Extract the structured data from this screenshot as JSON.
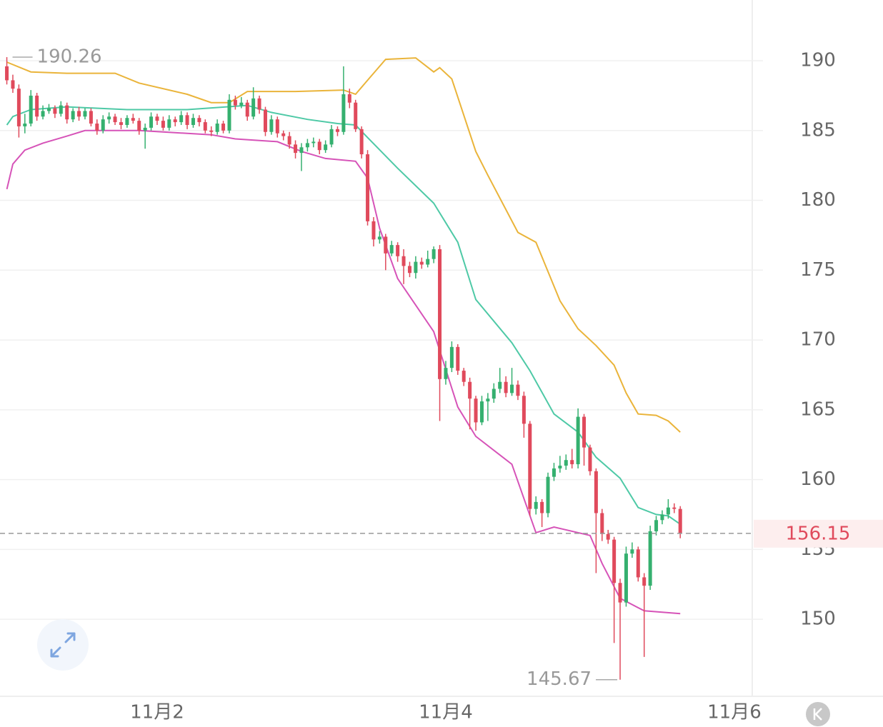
{
  "chart_data": {
    "type": "candlestick",
    "xlim": [
      0.911,
      6.124
    ],
    "xticks": [
      {
        "value": 2,
        "label": "11月2"
      },
      {
        "value": 4,
        "label": "11月4"
      },
      {
        "value": 6,
        "label": "11月6"
      }
    ],
    "ylim": [
      144.48,
      194.35
    ],
    "yticks": [
      150,
      155,
      160,
      165,
      170,
      175,
      180,
      185,
      190
    ],
    "grid": true,
    "up_color": "#35b06f",
    "down_color": "#e04a5c",
    "x": [
      0.9583,
      1,
      1.0417,
      1.0833,
      1.125,
      1.1667,
      1.2083,
      1.25,
      1.2917,
      1.3333,
      1.375,
      1.4167,
      1.4583,
      1.5,
      1.5417,
      1.5833,
      1.625,
      1.6667,
      1.7083,
      1.75,
      1.7917,
      1.8333,
      1.875,
      1.9167,
      1.9583,
      2,
      2.0417,
      2.0833,
      2.125,
      2.1667,
      2.2083,
      2.25,
      2.2917,
      2.3333,
      2.375,
      2.4167,
      2.4583,
      2.5,
      2.5417,
      2.5833,
      2.625,
      2.6667,
      2.7083,
      2.75,
      2.7917,
      2.8333,
      2.875,
      2.9167,
      2.9583,
      3,
      3.0417,
      3.0833,
      3.125,
      3.1667,
      3.2083,
      3.25,
      3.2917,
      3.3333,
      3.375,
      3.4167,
      3.4583,
      3.5,
      3.5417,
      3.5833,
      3.625,
      3.6667,
      3.7083,
      3.75,
      3.7917,
      3.8333,
      3.875,
      3.9167,
      3.9583,
      4,
      4.0417,
      4.0833,
      4.125,
      4.1667,
      4.2083,
      4.25,
      4.2917,
      4.3333,
      4.375,
      4.4167,
      4.4583,
      4.5,
      4.5417,
      4.5833,
      4.625,
      4.6667,
      4.7083,
      4.75,
      4.7917,
      4.8333,
      4.875,
      4.9167,
      4.9583,
      5,
      5.0417,
      5.0833,
      5.125,
      5.1667,
      5.2083,
      5.25,
      5.2917,
      5.3333,
      5.375,
      5.4167,
      5.4583,
      5.5,
      5.5417,
      5.5833,
      5.625
    ],
    "open": [
      189.6,
      188.6,
      188.0,
      185.3,
      185.5,
      187.5,
      186.0,
      186.4,
      186.6,
      186.2,
      186.8,
      185.8,
      186.4,
      186.0,
      186.4,
      185.5,
      185.0,
      185.8,
      186.0,
      185.6,
      185.4,
      185.9,
      185.7,
      185.0,
      185.2,
      186.0,
      185.7,
      185.2,
      185.8,
      185.6,
      186.1,
      185.4,
      185.9,
      185.6,
      185.0,
      184.9,
      185.5,
      185.0,
      187.2,
      186.8,
      187.0,
      186.0,
      187.3,
      186.5,
      184.9,
      185.8,
      184.8,
      184.6,
      184.0,
      183.4,
      183.8,
      184.1,
      184.2,
      183.6,
      184.0,
      185.1,
      184.9,
      187.6,
      187.0,
      185.1,
      183.3,
      178.5,
      177.2,
      177.4,
      176.2,
      176.8,
      176.0,
      175.3,
      174.8,
      175.6,
      175.4,
      175.8,
      176.5,
      167.2,
      168.0,
      169.5,
      167.8,
      167.0,
      165.8,
      164.1,
      165.6,
      165.8,
      166.5,
      167.0,
      166.2,
      166.8,
      166.0,
      164.0,
      157.9,
      158.4,
      157.6,
      160.2,
      160.8,
      161.0,
      161.4,
      161.1,
      164.5,
      162.3,
      160.6,
      157.6,
      156.1,
      155.7,
      152.6,
      151.2,
      154.7,
      155.0,
      153.0,
      152.4,
      156.3,
      157.1,
      157.5,
      158.0,
      157.9
    ],
    "high": [
      190.26,
      189.0,
      188.3,
      186.2,
      187.9,
      187.7,
      186.8,
      186.9,
      186.8,
      187.1,
      187.0,
      186.6,
      186.7,
      186.6,
      186.6,
      185.8,
      186.1,
      186.3,
      186.2,
      185.9,
      186.1,
      186.2,
      185.9,
      185.5,
      186.3,
      186.2,
      186.0,
      186.1,
      186.0,
      186.4,
      186.3,
      186.2,
      186.1,
      185.8,
      185.3,
      185.8,
      185.7,
      187.6,
      187.5,
      187.4,
      187.2,
      188.1,
      187.5,
      186.7,
      186.1,
      186.0,
      185.0,
      184.9,
      184.3,
      184.1,
      184.4,
      184.5,
      184.4,
      184.3,
      185.4,
      185.3,
      189.6,
      188.0,
      187.2,
      185.3,
      183.6,
      178.8,
      177.8,
      177.6,
      177.1,
      177.0,
      176.5,
      175.6,
      176.0,
      175.9,
      176.4,
      176.7,
      176.8,
      168.5,
      169.9,
      169.7,
      168.0,
      167.3,
      166.0,
      166.0,
      166.2,
      166.9,
      168.0,
      167.4,
      168.0,
      167.1,
      166.3,
      164.2,
      158.8,
      158.6,
      160.5,
      161.2,
      161.7,
      161.8,
      162.2,
      165.1,
      164.7,
      162.5,
      160.8,
      157.9,
      156.4,
      155.9,
      152.9,
      155.2,
      155.5,
      155.2,
      153.3,
      156.7,
      157.4,
      157.8,
      158.6,
      158.3,
      158.1
    ],
    "low": [
      188.3,
      187.7,
      184.5,
      184.8,
      185.3,
      185.7,
      185.8,
      186.2,
      185.9,
      186.0,
      185.5,
      185.6,
      185.7,
      185.8,
      185.3,
      184.7,
      184.8,
      185.5,
      185.4,
      185.1,
      185.2,
      185.5,
      184.7,
      183.7,
      185.0,
      185.4,
      185.0,
      185.0,
      185.3,
      185.4,
      185.1,
      185.2,
      185.3,
      184.8,
      184.6,
      184.7,
      184.8,
      184.8,
      186.5,
      186.6,
      185.7,
      185.8,
      186.2,
      184.6,
      184.7,
      184.5,
      184.3,
      183.7,
      183.0,
      182.1,
      183.5,
      183.8,
      183.3,
      183.4,
      183.8,
      184.6,
      184.7,
      186.6,
      184.9,
      183.0,
      178.2,
      176.7,
      176.9,
      175.0,
      176.0,
      175.6,
      174.0,
      174.5,
      174.4,
      175.1,
      175.2,
      175.5,
      164.2,
      166.8,
      167.7,
      167.5,
      166.7,
      163.6,
      163.5,
      163.9,
      164.2,
      165.5,
      166.2,
      165.9,
      166.0,
      165.7,
      163.0,
      157.4,
      157.5,
      156.6,
      157.3,
      159.9,
      160.5,
      160.7,
      160.8,
      160.8,
      161.0,
      160.3,
      153.3,
      155.6,
      155.4,
      148.3,
      145.67,
      150.9,
      154.4,
      152.7,
      147.3,
      152.1,
      156.0,
      156.8,
      157.2,
      157.6,
      155.8
    ],
    "close": [
      188.6,
      188.0,
      185.3,
      185.5,
      187.5,
      186.0,
      186.4,
      186.6,
      186.2,
      186.8,
      185.8,
      186.4,
      186.0,
      186.4,
      185.5,
      185.0,
      185.8,
      186.0,
      185.6,
      185.4,
      185.9,
      185.7,
      185.0,
      185.2,
      186.0,
      185.7,
      185.2,
      185.8,
      185.6,
      186.1,
      185.4,
      185.9,
      185.6,
      185.0,
      184.9,
      185.5,
      185.0,
      187.2,
      186.8,
      187.0,
      186.0,
      187.3,
      186.5,
      184.9,
      185.8,
      184.8,
      184.6,
      184.0,
      183.4,
      183.8,
      184.1,
      184.2,
      183.6,
      184.0,
      185.1,
      184.9,
      187.6,
      187.0,
      185.1,
      183.3,
      178.5,
      177.2,
      177.4,
      176.2,
      176.8,
      176.0,
      175.3,
      174.8,
      175.6,
      175.4,
      175.8,
      176.5,
      167.2,
      168.0,
      169.5,
      167.8,
      167.0,
      165.8,
      164.1,
      165.6,
      165.8,
      166.5,
      167.0,
      166.2,
      166.8,
      166.0,
      164.0,
      157.9,
      158.4,
      157.6,
      160.2,
      160.8,
      161.0,
      161.4,
      161.1,
      164.5,
      162.3,
      160.6,
      157.6,
      156.1,
      155.7,
      152.6,
      151.2,
      154.7,
      155.0,
      153.0,
      152.4,
      156.3,
      157.1,
      157.5,
      158.0,
      157.9,
      156.15
    ],
    "bands": [
      {
        "color": "#eab43a",
        "x": [
          0.9583,
          1.125,
          1.375,
          1.7083,
          1.875,
          2.2083,
          2.375,
          2.5,
          2.625,
          2.9583,
          3.2917,
          3.375,
          3.4583,
          3.5833,
          3.7917,
          3.9167,
          3.9583,
          4.0417,
          4.2083,
          4.2917,
          4.5,
          4.625,
          4.7917,
          4.9167,
          5.0417,
          5.1667,
          5.25,
          5.3333,
          5.4583,
          5.5417,
          5.625
        ],
        "values": [
          189.9,
          189.2,
          189.1,
          189.1,
          188.4,
          187.6,
          187.0,
          187.0,
          187.8,
          187.8,
          187.9,
          187.6,
          188.6,
          190.1,
          190.2,
          189.2,
          189.5,
          188.7,
          183.5,
          181.8,
          177.7,
          177.0,
          172.8,
          170.8,
          169.6,
          168.2,
          166.2,
          164.7,
          164.6,
          164.2,
          163.4
        ]
      },
      {
        "color": "#4ec9a6",
        "x": [
          0.9583,
          1,
          1.125,
          1.375,
          1.7917,
          2.2083,
          2.625,
          2.7917,
          3.0417,
          3.25,
          3.375,
          3.4583,
          3.6667,
          3.9167,
          4.0833,
          4.2083,
          4.4583,
          4.5833,
          4.75,
          4.9167,
          5.0417,
          5.2083,
          5.3333,
          5.4583,
          5.5417,
          5.625
        ],
        "values": [
          185.4,
          186.0,
          186.5,
          186.7,
          186.5,
          186.5,
          186.8,
          186.3,
          185.8,
          185.5,
          185.4,
          184.5,
          182.3,
          179.8,
          177.0,
          172.9,
          169.8,
          167.8,
          164.7,
          163.4,
          161.6,
          160.1,
          158.0,
          157.5,
          157.4,
          156.8
        ]
      },
      {
        "color": "#d653b8",
        "x": [
          0.9583,
          1,
          1.0833,
          1.2083,
          1.375,
          1.5,
          1.875,
          2.375,
          2.5417,
          2.8333,
          3,
          3.1667,
          3.375,
          3.4583,
          3.5417,
          3.6667,
          3.9167,
          4.0833,
          4.2083,
          4.4583,
          4.625,
          4.75,
          5,
          5.0833,
          5.2083,
          5.375,
          5.625
        ],
        "values": [
          180.8,
          182.6,
          183.6,
          184.1,
          184.6,
          185.0,
          185.0,
          184.7,
          184.4,
          184.2,
          183.5,
          183.0,
          182.8,
          181.6,
          178.0,
          174.4,
          170.6,
          165.2,
          163.1,
          161.1,
          156.2,
          156.6,
          156.0,
          154.0,
          151.5,
          150.6,
          150.4
        ]
      }
    ]
  }
}
